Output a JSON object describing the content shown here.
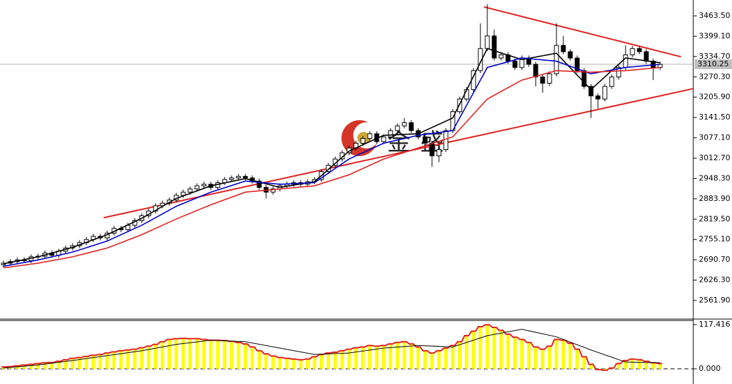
{
  "chart_data": [
    {
      "type": "candlestick",
      "watermark": "金盛",
      "ylim": [
        2502.8,
        3513.8
      ],
      "yticks": [
        {
          "value": 3463.5,
          "label": "3463.50"
        },
        {
          "value": 3399.1,
          "label": "3399.10"
        },
        {
          "value": 3334.7,
          "label": "3334.70"
        },
        {
          "value": 3270.3,
          "label": "3270.30"
        },
        {
          "value": 3205.9,
          "label": "3205.90"
        },
        {
          "value": 3141.5,
          "label": "3141.50"
        },
        {
          "value": 3077.1,
          "label": "3077.10"
        },
        {
          "value": 3012.7,
          "label": "3012.70"
        },
        {
          "value": 2948.3,
          "label": "2948.30"
        },
        {
          "value": 2883.9,
          "label": "2883.90"
        },
        {
          "value": 2819.5,
          "label": "2819.50"
        },
        {
          "value": 2755.1,
          "label": "2755.10"
        },
        {
          "value": 2690.7,
          "label": "2690.70"
        },
        {
          "value": 2626.3,
          "label": "2626.30"
        },
        {
          "value": 2561.9,
          "label": "2561.90"
        }
      ],
      "current_price": 3310.25,
      "open": [
        2675,
        2680,
        2685,
        2690,
        2688,
        2700,
        2702,
        2712,
        2705,
        2718,
        2728,
        2735,
        2745,
        2755,
        2765,
        2760,
        2775,
        2790,
        2786,
        2800,
        2815,
        2830,
        2845,
        2862,
        2870,
        2880,
        2895,
        2905,
        2915,
        2925,
        2930,
        2920,
        2935,
        2945,
        2950,
        2955,
        2950,
        2940,
        2920,
        2905,
        2915,
        2925,
        2930,
        2935,
        2930,
        2938,
        2945,
        2970,
        2990,
        3010,
        3030,
        3045,
        3060,
        3075,
        3090,
        3065,
        3080,
        3100,
        3115,
        3125,
        3100,
        3080,
        3060,
        3020,
        3040,
        3100,
        3160,
        3200,
        3230,
        3290,
        3360,
        3400,
        3330,
        3340,
        3320,
        3300,
        3330,
        3310,
        3270,
        3250,
        3280,
        3370,
        3350,
        3330,
        3290,
        3240,
        3210,
        3200,
        3240,
        3270,
        3300,
        3340,
        3360,
        3350,
        3320,
        3300
      ],
      "high": [
        2688,
        2693,
        2698,
        2698,
        2708,
        2710,
        2720,
        2720,
        2726,
        2736,
        2743,
        2753,
        2763,
        2773,
        2773,
        2783,
        2798,
        2798,
        2808,
        2823,
        2838,
        2853,
        2870,
        2878,
        2888,
        2903,
        2913,
        2923,
        2933,
        2938,
        2938,
        2943,
        2953,
        2958,
        2963,
        2963,
        2958,
        2948,
        2928,
        2923,
        2933,
        2938,
        2943,
        2943,
        2946,
        2953,
        2978,
        2998,
        3018,
        3038,
        3053,
        3068,
        3083,
        3098,
        3098,
        3088,
        3108,
        3123,
        3140,
        3133,
        3108,
        3088,
        3068,
        3048,
        3108,
        3168,
        3208,
        3238,
        3298,
        3440,
        3500,
        3420,
        3348,
        3348,
        3328,
        3338,
        3338,
        3318,
        3278,
        3288,
        3440,
        3400,
        3358,
        3338,
        3298,
        3248,
        3218,
        3248,
        3278,
        3308,
        3370,
        3368,
        3368,
        3358,
        3328,
        3318
      ],
      "low": [
        2667,
        2672,
        2677,
        2680,
        2680,
        2692,
        2694,
        2697,
        2697,
        2710,
        2720,
        2727,
        2737,
        2747,
        2752,
        2752,
        2767,
        2778,
        2778,
        2792,
        2807,
        2822,
        2837,
        2854,
        2862,
        2872,
        2887,
        2897,
        2907,
        2917,
        2912,
        2912,
        2927,
        2937,
        2942,
        2942,
        2932,
        2912,
        2885,
        2897,
        2907,
        2917,
        2922,
        2922,
        2922,
        2930,
        2937,
        2962,
        2982,
        3002,
        3022,
        3037,
        3052,
        3067,
        3057,
        3057,
        3072,
        3092,
        3107,
        3092,
        3072,
        3052,
        2985,
        3000,
        3032,
        3092,
        3152,
        3192,
        3222,
        3282,
        3352,
        3322,
        3322,
        3312,
        3292,
        3292,
        3302,
        3240,
        3220,
        3242,
        3272,
        3342,
        3322,
        3282,
        3232,
        3140,
        3170,
        3192,
        3232,
        3262,
        3292,
        3332,
        3342,
        3312,
        3260,
        3292
      ],
      "close": [
        2680,
        2685,
        2690,
        2688,
        2700,
        2702,
        2712,
        2705,
        2718,
        2728,
        2735,
        2745,
        2755,
        2765,
        2760,
        2775,
        2790,
        2786,
        2800,
        2815,
        2830,
        2845,
        2862,
        2870,
        2880,
        2895,
        2905,
        2915,
        2925,
        2930,
        2920,
        2935,
        2945,
        2950,
        2955,
        2950,
        2940,
        2920,
        2905,
        2915,
        2925,
        2930,
        2935,
        2930,
        2938,
        2945,
        2970,
        2990,
        3010,
        3030,
        3045,
        3060,
        3075,
        3090,
        3065,
        3080,
        3100,
        3115,
        3125,
        3100,
        3080,
        3060,
        3020,
        3040,
        3100,
        3160,
        3200,
        3230,
        3290,
        3360,
        3400,
        3330,
        3340,
        3320,
        3300,
        3330,
        3310,
        3270,
        3250,
        3280,
        3370,
        3350,
        3330,
        3290,
        3240,
        3210,
        3200,
        3240,
        3270,
        3300,
        3340,
        3360,
        3350,
        3320,
        3300,
        3310
      ],
      "series": [
        {
          "color": "#000000",
          "x": [
            0,
            5,
            10,
            15,
            20,
            25,
            30,
            35,
            40,
            45,
            50,
            55,
            60,
            65,
            70,
            75,
            80,
            85,
            90,
            95
          ],
          "values": [
            2678,
            2700,
            2730,
            2770,
            2822,
            2885,
            2925,
            2948,
            2920,
            2938,
            3035,
            3085,
            3090,
            3140,
            3360,
            3325,
            3345,
            3230,
            3330,
            3315
          ]
        },
        {
          "color": "#0000cc",
          "x": [
            0,
            5,
            10,
            15,
            20,
            25,
            30,
            35,
            40,
            45,
            50,
            55,
            60,
            65,
            70,
            75,
            80,
            85,
            90,
            95
          ],
          "values": [
            2670,
            2690,
            2715,
            2750,
            2800,
            2860,
            2905,
            2940,
            2930,
            2935,
            3010,
            3060,
            3085,
            3100,
            3300,
            3330,
            3320,
            3280,
            3300,
            3310
          ]
        },
        {
          "color": "#e02020",
          "x": [
            0,
            5,
            10,
            15,
            20,
            25,
            30,
            35,
            40,
            45,
            50,
            55,
            60,
            65,
            70,
            75,
            80,
            85,
            90,
            95
          ],
          "values": [
            2665,
            2680,
            2700,
            2728,
            2770,
            2820,
            2865,
            2905,
            2915,
            2925,
            2960,
            3010,
            3045,
            3080,
            3200,
            3260,
            3290,
            3285,
            3290,
            3300
          ]
        }
      ],
      "trendlines": [
        {
          "color": "#e02020",
          "x": [
            69.5,
            98
          ],
          "values": [
            3492,
            3334
          ]
        },
        {
          "color": "#e02020",
          "x": [
            14.5,
            99.8
          ],
          "values": [
            2824,
            3233
          ]
        }
      ]
    },
    {
      "type": "histogram",
      "color": "#ffff00",
      "line_color": "#e02020",
      "ylim": [
        -40.4,
        130.3
      ],
      "yticks": [
        117.416,
        {
          "value": 0,
          "label": "0.000"
        }
      ],
      "values": [
        5,
        6,
        8,
        10,
        12,
        14,
        16,
        17,
        20,
        24,
        28,
        30,
        33,
        36,
        38,
        42,
        45,
        48,
        50,
        52,
        56,
        60,
        65,
        72,
        78,
        80,
        81,
        80,
        80,
        78,
        76,
        76,
        75,
        73,
        70,
        66,
        58,
        48,
        40,
        34,
        30,
        28,
        26,
        24,
        26,
        32,
        38,
        42,
        44,
        48,
        52,
        56,
        58,
        62,
        60,
        62,
        66,
        70,
        72,
        66,
        58,
        48,
        42,
        48,
        55,
        62,
        72,
        88,
        100,
        112,
        117,
        110,
        102,
        92,
        84,
        78,
        70,
        58,
        52,
        60,
        78,
        76,
        68,
        52,
        32,
        12,
        -2,
        -4,
        2,
        14,
        22,
        26,
        24,
        20,
        16,
        14
      ],
      "series": [
        {
          "color": "#000000",
          "x": [
            0,
            5,
            10,
            15,
            20,
            25,
            30,
            35,
            40,
            45,
            50,
            55,
            60,
            65,
            70,
            75,
            80,
            85,
            90,
            95
          ],
          "values": [
            2,
            10,
            22,
            35,
            48,
            65,
            76,
            72,
            55,
            38,
            42,
            55,
            62,
            58,
            88,
            105,
            85,
            50,
            18,
            16
          ]
        }
      ]
    }
  ]
}
